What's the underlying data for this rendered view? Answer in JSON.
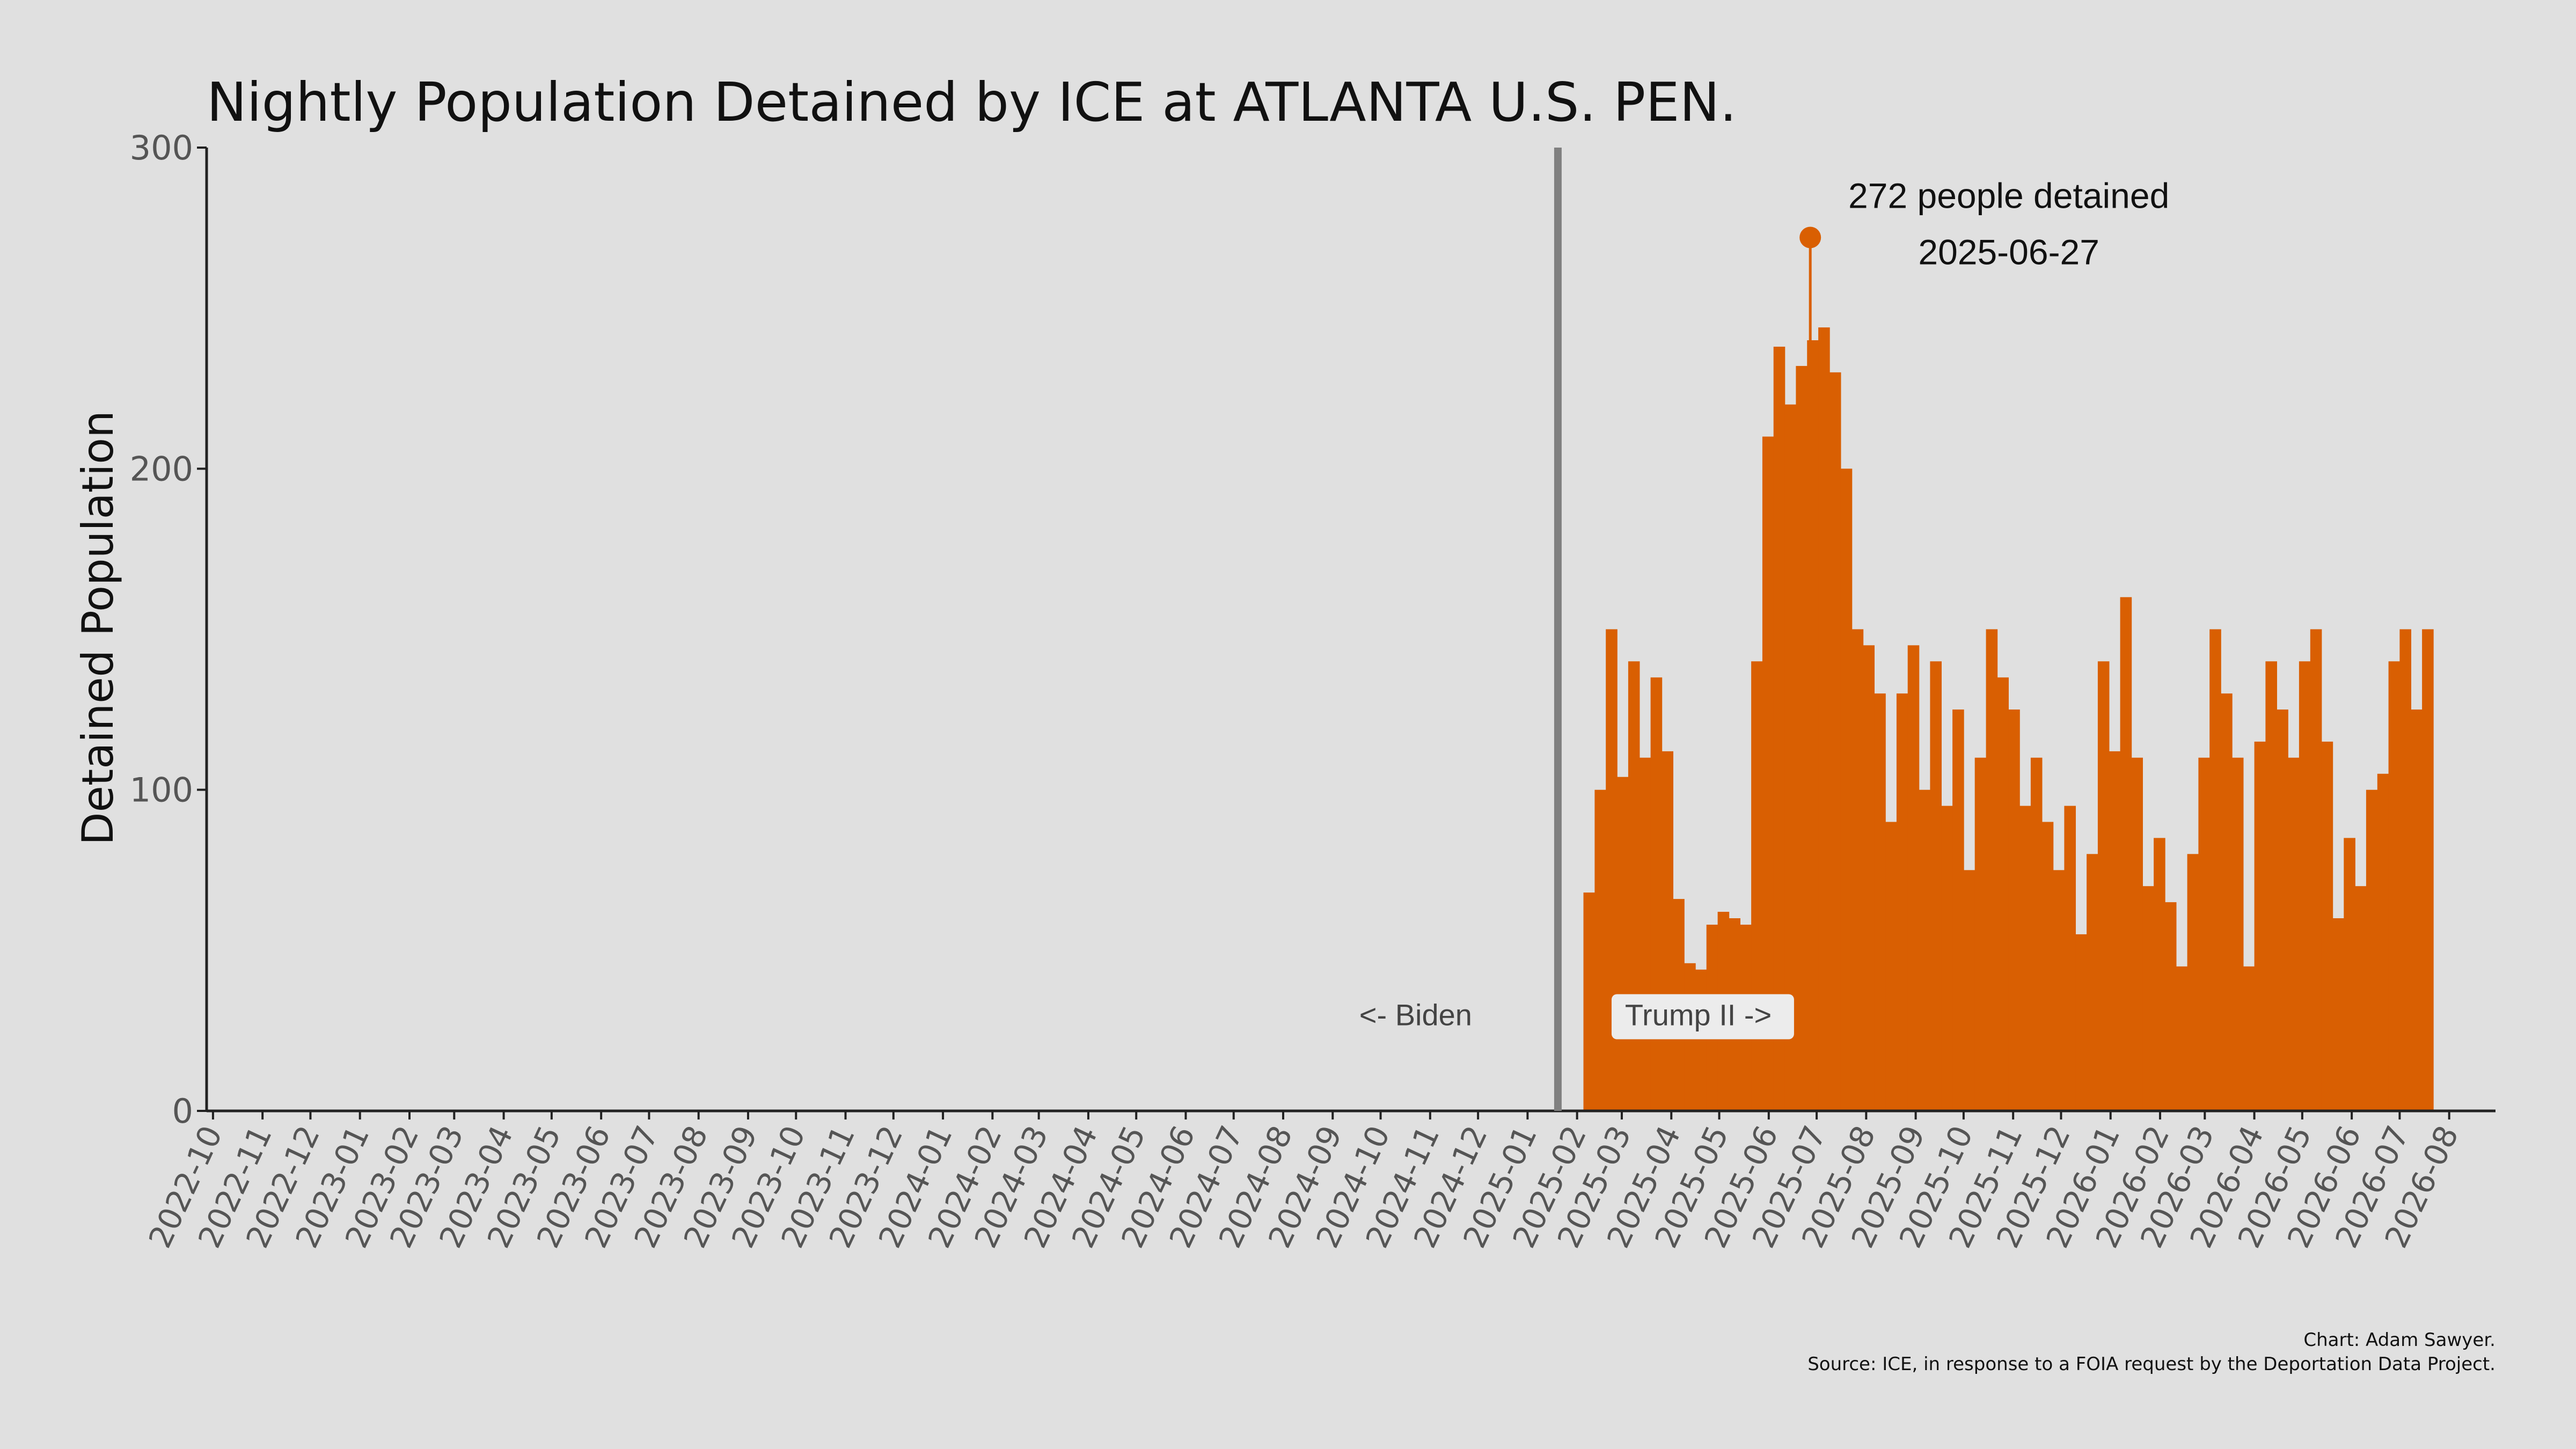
{
  "chart_data": {
    "type": "bar",
    "title": "Nightly Population Detained by ICE at ATLANTA U.S. PEN.",
    "xlabel": "",
    "ylabel": "Detained Population",
    "ylim": [
      0,
      300
    ],
    "yticks": [
      "0",
      "100",
      "200",
      "300"
    ],
    "xlim": [
      "2022-09-27",
      "2026-08-30"
    ],
    "xticks": [
      "2022-10",
      "2022-11",
      "2022-12",
      "2023-01",
      "2023-02",
      "2023-03",
      "2023-04",
      "2023-05",
      "2023-06",
      "2023-07",
      "2023-08",
      "2023-09",
      "2023-10",
      "2023-11",
      "2023-12",
      "2024-01",
      "2024-02",
      "2024-03",
      "2024-04",
      "2024-05",
      "2024-06",
      "2024-07",
      "2024-08",
      "2024-09",
      "2024-10",
      "2024-11",
      "2024-12",
      "2025-01",
      "2025-02",
      "2025-03",
      "2025-04",
      "2025-05",
      "2025-06",
      "2025-07",
      "2025-08",
      "2025-09",
      "2025-10",
      "2025-11",
      "2025-12",
      "2026-01",
      "2026-02",
      "2026-03",
      "2026-04",
      "2026-05",
      "2026-06",
      "2026-07",
      "2026-08"
    ],
    "grid": false,
    "bar_color": "#d95f02",
    "series": [
      {
        "values_by_week": [
          {
            "week_of": "2025-02-05",
            "value": 68
          },
          {
            "week_of": "2025-02-12",
            "value": 100
          },
          {
            "week_of": "2025-02-19",
            "value": 150
          },
          {
            "week_of": "2025-02-26",
            "value": 104
          },
          {
            "week_of": "2025-03-05",
            "value": 140
          },
          {
            "week_of": "2025-03-12",
            "value": 110
          },
          {
            "week_of": "2025-03-19",
            "value": 135
          },
          {
            "week_of": "2025-03-26",
            "value": 112
          },
          {
            "week_of": "2025-04-02",
            "value": 66
          },
          {
            "week_of": "2025-04-09",
            "value": 46
          },
          {
            "week_of": "2025-04-16",
            "value": 44
          },
          {
            "week_of": "2025-04-23",
            "value": 58
          },
          {
            "week_of": "2025-04-30",
            "value": 62
          },
          {
            "week_of": "2025-05-07",
            "value": 60
          },
          {
            "week_of": "2025-05-14",
            "value": 58
          },
          {
            "week_of": "2025-05-21",
            "value": 140
          },
          {
            "week_of": "2025-05-28",
            "value": 210
          },
          {
            "week_of": "2025-06-04",
            "value": 238
          },
          {
            "week_of": "2025-06-11",
            "value": 220
          },
          {
            "week_of": "2025-06-18",
            "value": 232
          },
          {
            "week_of": "2025-06-25",
            "value": 240
          },
          {
            "week_of": "2025-07-02",
            "value": 244
          },
          {
            "week_of": "2025-07-09",
            "value": 230
          },
          {
            "week_of": "2025-07-16",
            "value": 200
          },
          {
            "week_of": "2025-07-23",
            "value": 150
          },
          {
            "week_of": "2025-07-30",
            "value": 145
          },
          {
            "week_of": "2025-08-06",
            "value": 130
          },
          {
            "week_of": "2025-08-13",
            "value": 90
          },
          {
            "week_of": "2025-08-20",
            "value": 130
          },
          {
            "week_of": "2025-08-27",
            "value": 145
          },
          {
            "week_of": "2025-09-03",
            "value": 100
          },
          {
            "week_of": "2025-09-10",
            "value": 140
          },
          {
            "week_of": "2025-09-17",
            "value": 95
          },
          {
            "week_of": "2025-09-24",
            "value": 125
          },
          {
            "week_of": "2025-10-01",
            "value": 75
          },
          {
            "week_of": "2025-10-08",
            "value": 110
          },
          {
            "week_of": "2025-10-15",
            "value": 150
          },
          {
            "week_of": "2025-10-22",
            "value": 135
          },
          {
            "week_of": "2025-10-29",
            "value": 125
          },
          {
            "week_of": "2025-11-05",
            "value": 95
          },
          {
            "week_of": "2025-11-12",
            "value": 110
          },
          {
            "week_of": "2025-11-19",
            "value": 90
          },
          {
            "week_of": "2025-11-26",
            "value": 75
          },
          {
            "week_of": "2025-12-03",
            "value": 95
          },
          {
            "week_of": "2025-12-10",
            "value": 55
          },
          {
            "week_of": "2025-12-17",
            "value": 80
          },
          {
            "week_of": "2025-12-24",
            "value": 140
          },
          {
            "week_of": "2025-12-31",
            "value": 112
          },
          {
            "week_of": "2026-01-07",
            "value": 160
          },
          {
            "week_of": "2026-01-14",
            "value": 110
          },
          {
            "week_of": "2026-01-21",
            "value": 70
          },
          {
            "week_of": "2026-01-28",
            "value": 85
          },
          {
            "week_of": "2026-02-04",
            "value": 65
          },
          {
            "week_of": "2026-02-11",
            "value": 45
          },
          {
            "week_of": "2026-02-18",
            "value": 80
          },
          {
            "week_of": "2026-02-25",
            "value": 110
          },
          {
            "week_of": "2026-03-04",
            "value": 150
          },
          {
            "week_of": "2026-03-11",
            "value": 130
          },
          {
            "week_of": "2026-03-18",
            "value": 110
          },
          {
            "week_of": "2026-03-25",
            "value": 45
          },
          {
            "week_of": "2026-04-01",
            "value": 115
          },
          {
            "week_of": "2026-04-08",
            "value": 140
          },
          {
            "week_of": "2026-04-15",
            "value": 125
          },
          {
            "week_of": "2026-04-22",
            "value": 110
          },
          {
            "week_of": "2026-04-29",
            "value": 140
          },
          {
            "week_of": "2026-05-06",
            "value": 150
          },
          {
            "week_of": "2026-05-13",
            "value": 115
          },
          {
            "week_of": "2026-05-20",
            "value": 60
          },
          {
            "week_of": "2026-05-27",
            "value": 85
          },
          {
            "week_of": "2026-06-03",
            "value": 70
          },
          {
            "week_of": "2026-06-10",
            "value": 100
          },
          {
            "week_of": "2026-06-17",
            "value": 105
          },
          {
            "week_of": "2026-06-24",
            "value": 140
          },
          {
            "week_of": "2026-07-01",
            "value": 150
          },
          {
            "week_of": "2026-07-08",
            "value": 125
          },
          {
            "week_of": "2026-07-15",
            "value": 150
          }
        ]
      }
    ],
    "peak": {
      "date": "2025-06-27",
      "value": 272,
      "label_line1": "272 people detained",
      "label_line2": "2025-06-27"
    },
    "divider": {
      "date": "2025-01-20",
      "color": "#808080",
      "label_left": "<- Biden",
      "label_right": "Trump II ->"
    },
    "credit_line1": "Chart: Adam Sawyer.",
    "credit_line2": "Source: ICE, in response to a FOIA request by the Deportation Data Project."
  }
}
